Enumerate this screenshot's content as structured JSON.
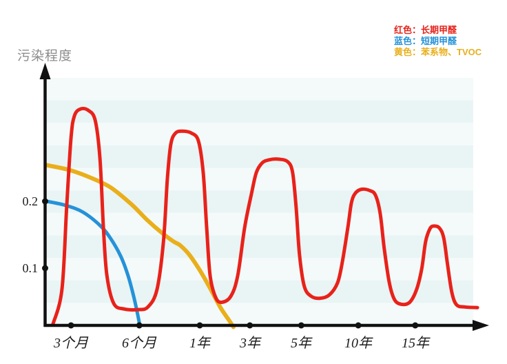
{
  "chart_data": {
    "type": "line",
    "title": "",
    "xlabel": "",
    "ylabel": "污染程度",
    "ylim": [
      0,
      0.4
    ],
    "grid": "striped-horizontal-bands",
    "legend_position": "top-right",
    "axis_color": "#111111",
    "tick_label_color": "#1d1d1d",
    "ylabel_color": "#8c8c8c",
    "stripe_colors": [
      "#f4fafa",
      "#e9f4f5"
    ],
    "x_ticks": [
      {
        "label": "3个月",
        "pos": 0.056
      },
      {
        "label": "6个月",
        "pos": 0.214
      },
      {
        "label": "1年",
        "pos": 0.354
      },
      {
        "label": "3年",
        "pos": 0.47
      },
      {
        "label": "5年",
        "pos": 0.589
      },
      {
        "label": "10年",
        "pos": 0.721
      },
      {
        "label": "15年",
        "pos": 0.853
      }
    ],
    "y_ticks": [
      {
        "label": "0.2",
        "value": 0.2
      },
      {
        "label": "0.1",
        "value": 0.1
      }
    ],
    "series": [
      {
        "key": "long-term-formaldehyde",
        "name": "长期甲醛",
        "legend_label": "红色：长期甲醛",
        "color": "#e8221a",
        "stroke_width": 5,
        "points": [
          [
            0.014,
            0.016
          ],
          [
            0.035,
            0.068
          ],
          [
            0.046,
            0.192
          ],
          [
            0.056,
            0.295
          ],
          [
            0.064,
            0.328
          ],
          [
            0.078,
            0.338
          ],
          [
            0.096,
            0.336
          ],
          [
            0.112,
            0.321
          ],
          [
            0.123,
            0.264
          ],
          [
            0.131,
            0.161
          ],
          [
            0.139,
            0.089
          ],
          [
            0.155,
            0.047
          ],
          [
            0.179,
            0.039
          ],
          [
            0.211,
            0.038
          ],
          [
            0.234,
            0.042
          ],
          [
            0.255,
            0.068
          ],
          [
            0.27,
            0.14
          ],
          [
            0.279,
            0.233
          ],
          [
            0.287,
            0.285
          ],
          [
            0.298,
            0.302
          ],
          [
            0.314,
            0.305
          ],
          [
            0.335,
            0.302
          ],
          [
            0.351,
            0.29
          ],
          [
            0.362,
            0.243
          ],
          [
            0.37,
            0.161
          ],
          [
            0.378,
            0.089
          ],
          [
            0.391,
            0.056
          ],
          [
            0.405,
            0.049
          ],
          [
            0.426,
            0.058
          ],
          [
            0.442,
            0.089
          ],
          [
            0.458,
            0.161
          ],
          [
            0.474,
            0.212
          ],
          [
            0.485,
            0.243
          ],
          [
            0.498,
            0.257
          ],
          [
            0.514,
            0.262
          ],
          [
            0.537,
            0.263
          ],
          [
            0.558,
            0.259
          ],
          [
            0.569,
            0.243
          ],
          [
            0.577,
            0.192
          ],
          [
            0.585,
            0.12
          ],
          [
            0.596,
            0.073
          ],
          [
            0.612,
            0.058
          ],
          [
            0.633,
            0.055
          ],
          [
            0.654,
            0.06
          ],
          [
            0.673,
            0.078
          ],
          [
            0.684,
            0.109
          ],
          [
            0.697,
            0.161
          ],
          [
            0.705,
            0.197
          ],
          [
            0.714,
            0.212
          ],
          [
            0.729,
            0.218
          ],
          [
            0.748,
            0.216
          ],
          [
            0.761,
            0.209
          ],
          [
            0.772,
            0.181
          ],
          [
            0.781,
            0.13
          ],
          [
            0.793,
            0.078
          ],
          [
            0.805,
            0.053
          ],
          [
            0.821,
            0.046
          ],
          [
            0.84,
            0.049
          ],
          [
            0.856,
            0.068
          ],
          [
            0.868,
            0.099
          ],
          [
            0.877,
            0.14
          ],
          [
            0.887,
            0.159
          ],
          [
            0.896,
            0.163
          ],
          [
            0.909,
            0.16
          ],
          [
            0.919,
            0.145
          ],
          [
            0.928,
            0.104
          ],
          [
            0.938,
            0.063
          ],
          [
            0.949,
            0.045
          ],
          [
            0.968,
            0.042
          ],
          [
            0.997,
            0.041
          ]
        ]
      },
      {
        "key": "short-term-formaldehyde",
        "name": "短期甲醛",
        "legend_label": "蓝色：短期甲醛",
        "color": "#2592d8",
        "stroke_width": 5,
        "points": [
          [
            0.0,
            0.2
          ],
          [
            0.043,
            0.194
          ],
          [
            0.083,
            0.184
          ],
          [
            0.123,
            0.164
          ],
          [
            0.147,
            0.145
          ],
          [
            0.171,
            0.118
          ],
          [
            0.187,
            0.091
          ],
          [
            0.199,
            0.063
          ],
          [
            0.209,
            0.035
          ],
          [
            0.215,
            0.015
          ]
        ]
      },
      {
        "key": "benzene-tvoc",
        "name": "苯系物、TVOC",
        "legend_label": "黄色：苯系物、TVOC",
        "color": "#e9af1b",
        "stroke_width": 6,
        "points": [
          [
            0.0,
            0.254
          ],
          [
            0.051,
            0.247
          ],
          [
            0.099,
            0.236
          ],
          [
            0.147,
            0.221
          ],
          [
            0.195,
            0.196
          ],
          [
            0.234,
            0.171
          ],
          [
            0.266,
            0.153
          ],
          [
            0.293,
            0.14
          ],
          [
            0.309,
            0.134
          ],
          [
            0.33,
            0.12
          ],
          [
            0.354,
            0.097
          ],
          [
            0.378,
            0.07
          ],
          [
            0.402,
            0.041
          ],
          [
            0.423,
            0.021
          ],
          [
            0.432,
            0.012
          ]
        ]
      }
    ]
  }
}
